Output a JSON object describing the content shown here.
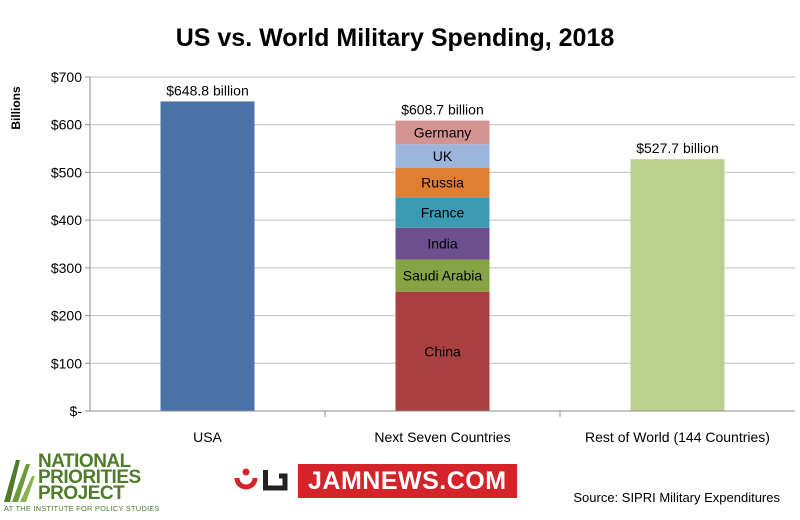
{
  "chart_data": {
    "type": "bar",
    "title": "US vs. World Military Spending, 2018",
    "ylabel": "Billions",
    "xlabel": "",
    "ylim": [
      0,
      700
    ],
    "yticks": [
      0,
      100,
      200,
      300,
      400,
      500,
      600,
      700
    ],
    "ytick_labels": [
      "$-",
      "$100",
      "$200",
      "$300",
      "$400",
      "$500",
      "$600",
      "$700"
    ],
    "grid": true,
    "categories": [
      "USA",
      "Next Seven Countries",
      "Rest of World (144 Countries)"
    ],
    "bars": [
      {
        "category": "USA",
        "total": 648.8,
        "total_label": "$648.8 billion",
        "segments": [
          {
            "label": "",
            "value": 648.8,
            "color": "#4a72a8"
          }
        ]
      },
      {
        "category": "Next Seven Countries",
        "total": 608.7,
        "total_label": "$608.7 billion",
        "segments": [
          {
            "label": "China",
            "value": 250,
            "color": "#a8403f"
          },
          {
            "label": "Saudi Arabia",
            "value": 67.6,
            "color": "#86a445"
          },
          {
            "label": "India",
            "value": 66.5,
            "color": "#6b4f8f"
          },
          {
            "label": "France",
            "value": 63.8,
            "color": "#3c9bb2"
          },
          {
            "label": "Russia",
            "value": 61.4,
            "color": "#e07f33"
          },
          {
            "label": "UK",
            "value": 50,
            "color": "#9db5db"
          },
          {
            "label": "Germany",
            "value": 49.4,
            "color": "#d49492"
          }
        ]
      },
      {
        "category": "Rest of World (144 Countries)",
        "total": 527.7,
        "total_label": "$527.7 billion",
        "segments": [
          {
            "label": "",
            "value": 527.7,
            "color": "#b9d08f"
          }
        ]
      }
    ]
  },
  "footer": {
    "logo_left": {
      "name_lines": [
        "NATIONAL",
        "PRIORITIES",
        "PROJECT"
      ],
      "tagline": "AT THE INSTITUTE FOR POLICY STUDIES"
    },
    "logo_center": {
      "text": "JAMNEWS.COM"
    },
    "source": "Source: SIPRI Military Expenditures"
  },
  "colors": {
    "npp_green": "#4f7c2a",
    "jam_red": "#d4242a"
  }
}
